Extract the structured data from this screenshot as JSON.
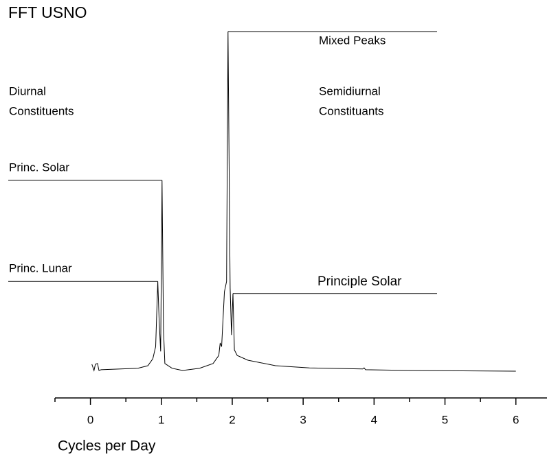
{
  "chart_data": {
    "type": "line",
    "title": "FFT USNO",
    "xlabel": "Cycles per Day",
    "x": [
      0.02,
      0.05,
      0.07,
      0.1,
      0.12,
      0.15,
      0.67,
      0.81,
      0.88,
      0.92,
      0.95,
      0.97,
      0.99,
      1.01,
      1.03,
      1.05,
      1.15,
      1.3,
      1.54,
      1.73,
      1.81,
      1.83,
      1.85,
      1.89,
      1.92,
      1.94,
      1.97,
      1.99,
      2.01,
      2.03,
      2.07,
      2.22,
      2.61,
      3.09,
      3.84,
      3.86,
      3.88,
      4.54,
      6.0
    ],
    "values": [
      9.2,
      7.5,
      9.2,
      9.4,
      7.5,
      7.7,
      8.1,
      8.8,
      10.7,
      14.0,
      31.8,
      20.6,
      12.7,
      59.4,
      18.7,
      9.4,
      8.1,
      7.5,
      8.1,
      9.4,
      11.6,
      15.0,
      14.0,
      29.0,
      31.8,
      100,
      30.0,
      17.2,
      28.5,
      13.1,
      11.6,
      10.3,
      8.8,
      8.2,
      7.9,
      8.2,
      7.7,
      7.5,
      7.3
    ],
    "color": "#000000",
    "xlim": [
      -0.5,
      6.4
    ],
    "xticks": [
      0,
      1,
      2,
      3,
      4,
      5,
      6
    ],
    "xminorticks": [
      -0.5,
      0.5,
      1.5,
      2.5,
      3.5,
      4.5,
      5.5
    ],
    "ylim": [
      0,
      100
    ],
    "annotations": [
      {
        "lines": [
          "Diurnal",
          "Constituents"
        ]
      },
      {
        "lines": [
          "Semidiurnal",
          "Constituants"
        ]
      },
      {
        "lines": [
          "Mixed Peaks"
        ]
      },
      {
        "lines": [
          "Princ. Solar"
        ]
      },
      {
        "lines": [
          "Princ. Lunar"
        ]
      },
      {
        "lines": [
          "Principle Solar"
        ]
      }
    ]
  }
}
